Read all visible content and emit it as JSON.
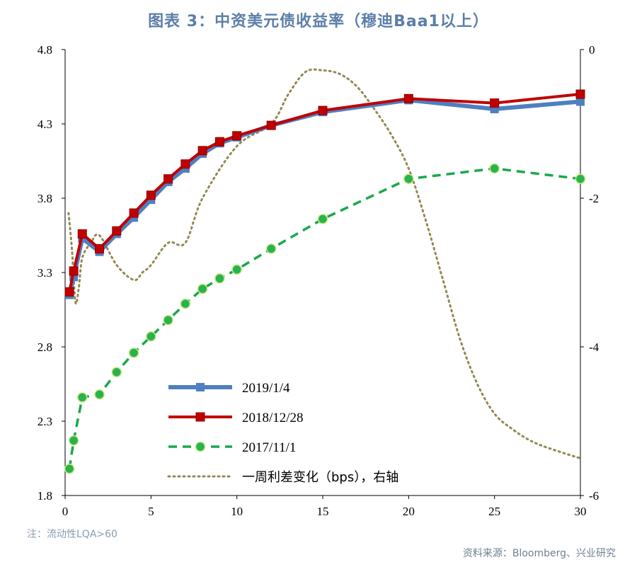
{
  "title": "图表 3：中资美元债收益率（穆迪Baa1以上）",
  "note": "注：流动性LQA>60",
  "source": "资料来源：Bloomberg、兴业研究",
  "chart_data": {
    "type": "line",
    "x_ticks": [
      0,
      5,
      10,
      15,
      20,
      25,
      30
    ],
    "xlim": [
      0,
      30
    ],
    "ylim_left": [
      1.8,
      4.8
    ],
    "y_ticks_left": [
      "1.8",
      "2.3",
      "2.8",
      "3.3",
      "3.8",
      "4.3",
      "4.8"
    ],
    "ylim_right": [
      -6,
      0
    ],
    "y_ticks_right": [
      "-6",
      "-4",
      "-2",
      "0"
    ],
    "series": [
      {
        "name": "2019/1/4",
        "axis": "left",
        "color": "#4f7fc0",
        "x": [
          0.25,
          0.5,
          1,
          2,
          3,
          4,
          5,
          6,
          7,
          8,
          9,
          10,
          12,
          15,
          20,
          25,
          30
        ],
        "y": [
          3.15,
          3.27,
          3.53,
          3.44,
          3.56,
          3.67,
          3.79,
          3.91,
          4.0,
          4.1,
          4.17,
          4.21,
          4.29,
          4.38,
          4.46,
          4.4,
          4.45
        ]
      },
      {
        "name": "2018/12/28",
        "axis": "left",
        "color": "#c00000",
        "x": [
          0.25,
          0.5,
          1,
          2,
          3,
          4,
          5,
          6,
          7,
          8,
          9,
          10,
          12,
          15,
          20,
          25,
          30
        ],
        "y": [
          3.17,
          3.31,
          3.56,
          3.46,
          3.58,
          3.7,
          3.82,
          3.93,
          4.03,
          4.12,
          4.18,
          4.22,
          4.29,
          4.39,
          4.47,
          4.44,
          4.5
        ]
      },
      {
        "name": "2017/11/1",
        "axis": "left",
        "color": "#1aa84a",
        "x": [
          0.25,
          0.5,
          1,
          2,
          3,
          4,
          5,
          6,
          7,
          8,
          9,
          10,
          12,
          15,
          20,
          25,
          30
        ],
        "y": [
          1.98,
          2.17,
          2.46,
          2.48,
          2.63,
          2.76,
          2.87,
          2.98,
          3.09,
          3.19,
          3.26,
          3.32,
          3.46,
          3.66,
          3.93,
          4.0,
          3.93
        ]
      },
      {
        "name": "一周利差变化（bps），右轴",
        "axis": "right",
        "color": "#938953",
        "x": [
          0.2,
          0.4,
          0.6,
          0.8,
          1,
          1.5,
          2,
          3,
          4,
          4.5,
          5,
          6,
          7,
          8,
          10,
          12,
          13,
          14,
          15,
          16,
          17,
          18,
          19,
          20,
          21,
          22,
          23,
          24,
          25,
          26,
          27,
          28,
          30
        ],
        "y": [
          -2.2,
          -2.7,
          -3.4,
          -3.2,
          -2.8,
          -2.6,
          -2.5,
          -2.9,
          -3.1,
          -3.0,
          -2.9,
          -2.6,
          -2.6,
          -2.0,
          -1.3,
          -1.0,
          -0.6,
          -0.3,
          -0.28,
          -0.33,
          -0.5,
          -0.8,
          -1.15,
          -1.6,
          -2.3,
          -3.1,
          -3.9,
          -4.5,
          -4.9,
          -5.1,
          -5.25,
          -5.35,
          -5.5
        ]
      }
    ]
  }
}
